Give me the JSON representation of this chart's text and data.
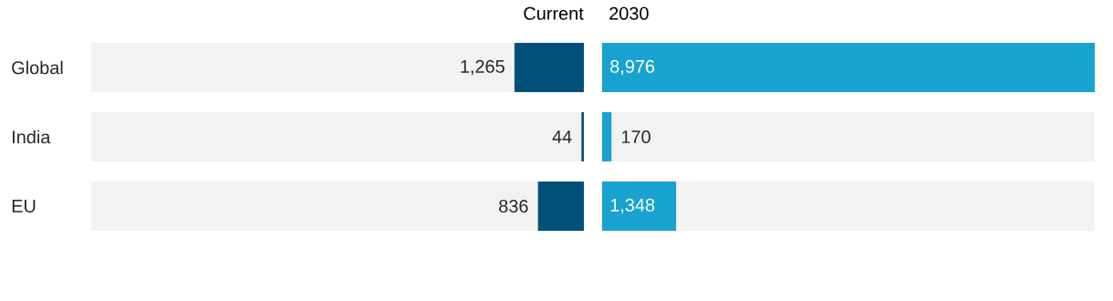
{
  "chart_data": [
    {
      "type": "bar",
      "orientation": "horizontal",
      "title": "Current",
      "categories": [
        "Global",
        "India",
        "EU"
      ],
      "values": [
        1265,
        44,
        836
      ],
      "color": "#00507a",
      "xlim": [
        8976,
        0
      ],
      "value_labels": [
        "1,265",
        "44",
        "836"
      ],
      "tick_labels": "y"
    },
    {
      "type": "bar",
      "orientation": "horizontal",
      "title": "2030",
      "categories": [
        null,
        null,
        null
      ],
      "values": [
        8976,
        170,
        1348
      ],
      "color": "#18a2cf",
      "xlim": [
        0,
        8976
      ],
      "value_labels": [
        "8,976",
        "170",
        "1,348"
      ],
      "tick_labels": false
    }
  ]
}
